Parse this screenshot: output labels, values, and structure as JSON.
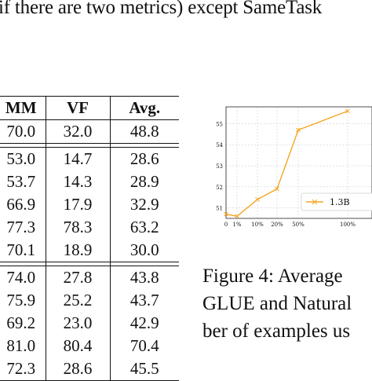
{
  "paragraph": {
    "line": "if there are two metrics) except SameTask"
  },
  "table": {
    "headers": [
      "MM",
      "VF",
      "Avg."
    ],
    "groups": [
      [
        {
          "cells": [
            "70.0",
            "32.0",
            "48.8"
          ],
          "bold": [
            false,
            false,
            false
          ]
        }
      ],
      [
        {
          "cells": [
            "53.0",
            "14.7",
            "28.6"
          ],
          "bold": [
            false,
            false,
            false
          ]
        },
        {
          "cells": [
            "53.7",
            "14.3",
            "28.9"
          ],
          "bold": [
            false,
            false,
            false
          ]
        },
        {
          "cells": [
            "66.9",
            "17.9",
            "32.9"
          ],
          "bold": [
            false,
            false,
            true
          ]
        },
        {
          "cells": [
            "77.3",
            "78.3",
            "63.2"
          ],
          "bold": [
            false,
            false,
            false
          ]
        },
        {
          "cells": [
            "70.1",
            "18.9",
            "30.0"
          ],
          "bold": [
            true,
            true,
            false
          ]
        }
      ],
      [
        {
          "cells": [
            "74.0",
            "27.8",
            "43.8"
          ],
          "bold": [
            false,
            false,
            false
          ]
        },
        {
          "cells": [
            "75.9",
            "25.2",
            "43.7"
          ],
          "bold": [
            true,
            false,
            false
          ]
        },
        {
          "cells": [
            "69.2",
            "23.0",
            "42.9"
          ],
          "bold": [
            false,
            false,
            false
          ]
        },
        {
          "cells": [
            "81.0",
            "80.4",
            "70.4"
          ],
          "bold": [
            false,
            false,
            false
          ]
        },
        {
          "cells": [
            "72.3",
            "28.6",
            "45.5"
          ],
          "bold": [
            false,
            true,
            true
          ]
        }
      ]
    ]
  },
  "chart_data": {
    "type": "line",
    "x": [
      "0",
      "1%",
      "10%",
      "20%",
      "50%",
      "100%"
    ],
    "series": [
      {
        "name": "1.3B",
        "values": [
          50.7,
          50.6,
          51.4,
          51.9,
          54.7,
          55.6
        ],
        "color": "#f5a623",
        "marker": "x"
      }
    ],
    "ylim": [
      50.5,
      55.8
    ],
    "yticks": [
      "51",
      "52",
      "53",
      "54",
      "55"
    ],
    "grid": true,
    "legend_position": "lower-right"
  },
  "figure_caption": {
    "lines": [
      "Figure 4:  Average",
      "GLUE and Natural",
      "ber of examples us"
    ]
  }
}
